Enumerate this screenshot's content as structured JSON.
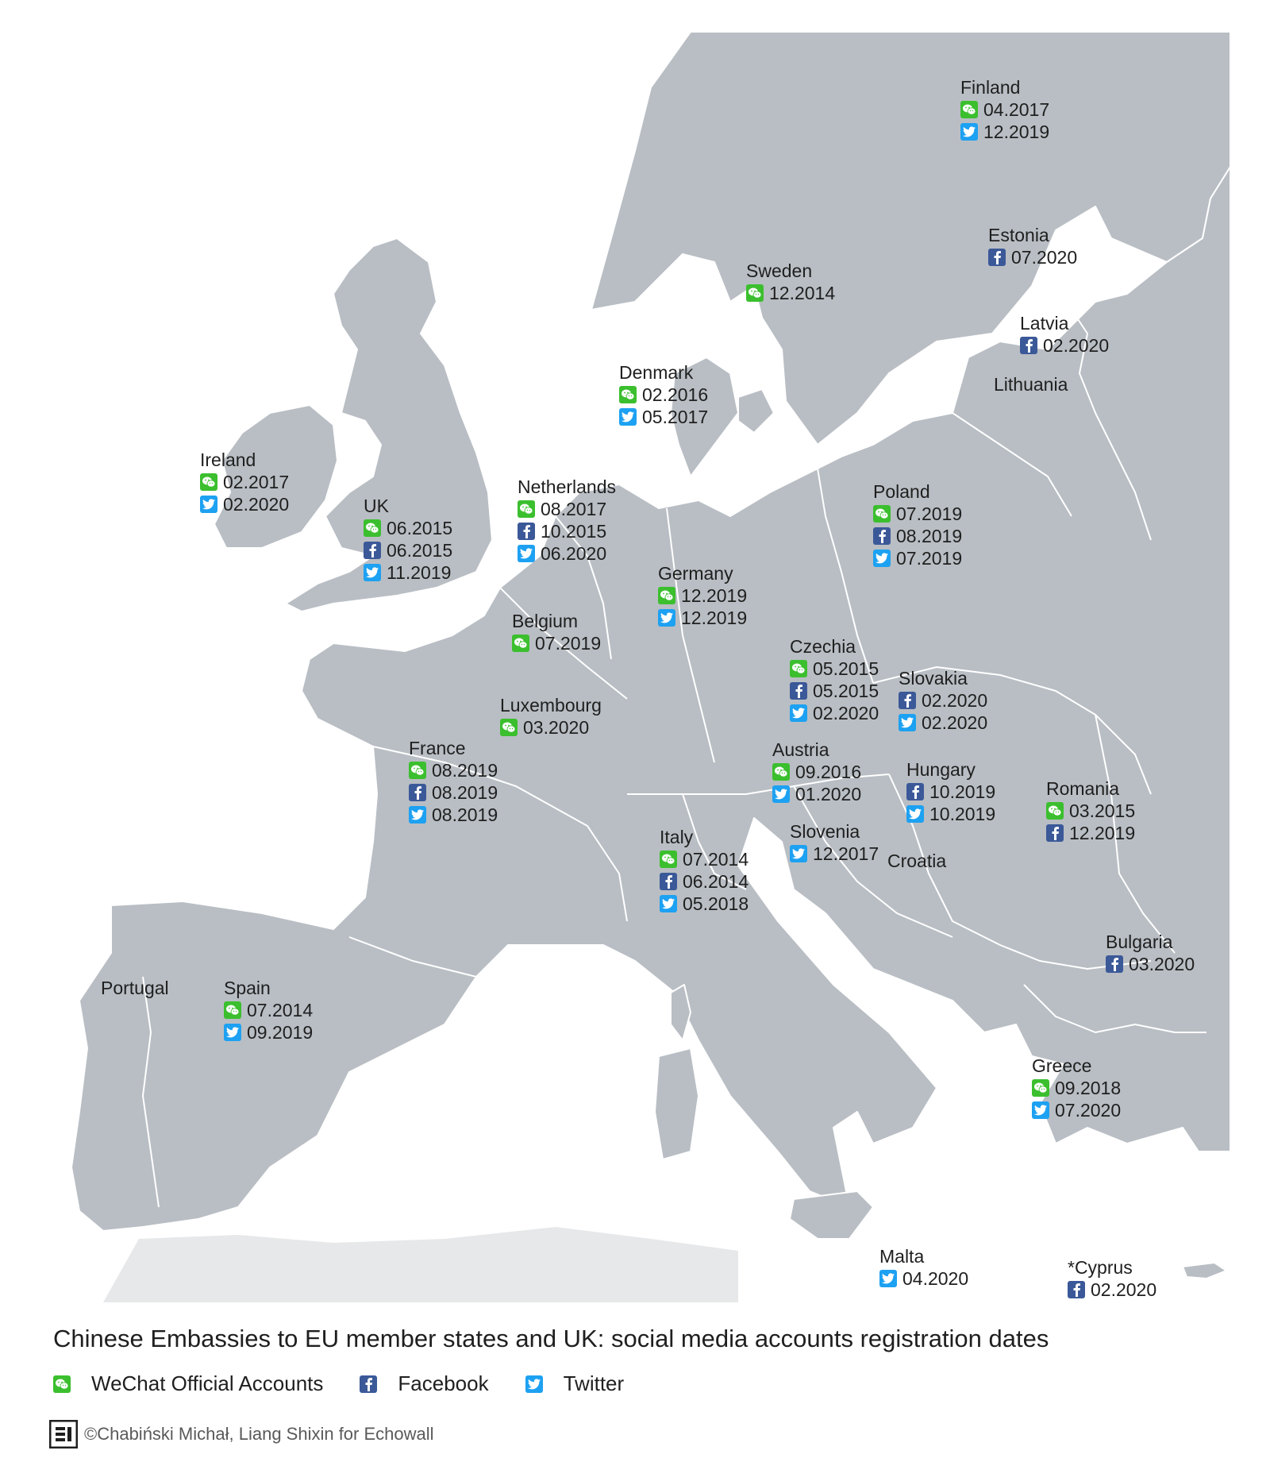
{
  "colors": {
    "wechat": "#3bbf2e",
    "facebook": "#3b5998",
    "twitter": "#1da1f2",
    "land": "#b9bec4"
  },
  "platforms": {
    "wechat": {
      "icon": "wechat-icon"
    },
    "facebook": {
      "icon": "facebook-icon"
    },
    "twitter": {
      "icon": "twitter-icon"
    }
  },
  "countries": [
    {
      "name": "Finland",
      "entries": [
        {
          "platform": "wechat",
          "date": "04.2017"
        },
        {
          "platform": "twitter",
          "date": "12.2019"
        }
      ]
    },
    {
      "name": "Estonia",
      "entries": [
        {
          "platform": "facebook",
          "date": "07.2020"
        }
      ]
    },
    {
      "name": "Sweden",
      "entries": [
        {
          "platform": "wechat",
          "date": "12.2014"
        }
      ]
    },
    {
      "name": "Latvia",
      "entries": [
        {
          "platform": "facebook",
          "date": "02.2020"
        }
      ]
    },
    {
      "name": "Lithuania",
      "entries": []
    },
    {
      "name": "Denmark",
      "entries": [
        {
          "platform": "wechat",
          "date": "02.2016"
        },
        {
          "platform": "twitter",
          "date": "05.2017"
        }
      ]
    },
    {
      "name": "Ireland",
      "entries": [
        {
          "platform": "wechat",
          "date": "02.2017"
        },
        {
          "platform": "twitter",
          "date": "02.2020"
        }
      ]
    },
    {
      "name": "UK",
      "entries": [
        {
          "platform": "wechat",
          "date": "06.2015"
        },
        {
          "platform": "facebook",
          "date": "06.2015"
        },
        {
          "platform": "twitter",
          "date": "11.2019"
        }
      ]
    },
    {
      "name": "Netherlands",
      "entries": [
        {
          "platform": "wechat",
          "date": "08.2017"
        },
        {
          "platform": "facebook",
          "date": "10.2015"
        },
        {
          "platform": "twitter",
          "date": "06.2020"
        }
      ]
    },
    {
      "name": "Poland",
      "entries": [
        {
          "platform": "wechat",
          "date": "07.2019"
        },
        {
          "platform": "facebook",
          "date": "08.2019"
        },
        {
          "platform": "twitter",
          "date": "07.2019"
        }
      ]
    },
    {
      "name": "Germany",
      "entries": [
        {
          "platform": "wechat",
          "date": "12.2019"
        },
        {
          "platform": "twitter",
          "date": "12.2019"
        }
      ]
    },
    {
      "name": "Belgium",
      "entries": [
        {
          "platform": "wechat",
          "date": "07.2019"
        }
      ]
    },
    {
      "name": "Czechia",
      "entries": [
        {
          "platform": "wechat",
          "date": "05.2015"
        },
        {
          "platform": "facebook",
          "date": "05.2015"
        },
        {
          "platform": "twitter",
          "date": "02.2020"
        }
      ]
    },
    {
      "name": "Slovakia",
      "entries": [
        {
          "platform": "facebook",
          "date": "02.2020"
        },
        {
          "platform": "twitter",
          "date": "02.2020"
        }
      ]
    },
    {
      "name": "Luxembourg",
      "entries": [
        {
          "platform": "wechat",
          "date": "03.2020"
        }
      ]
    },
    {
      "name": "France",
      "entries": [
        {
          "platform": "wechat",
          "date": "08.2019"
        },
        {
          "platform": "facebook",
          "date": "08.2019"
        },
        {
          "platform": "twitter",
          "date": "08.2019"
        }
      ]
    },
    {
      "name": "Austria",
      "entries": [
        {
          "platform": "wechat",
          "date": "09.2016"
        },
        {
          "platform": "twitter",
          "date": "01.2020"
        }
      ]
    },
    {
      "name": "Hungary",
      "entries": [
        {
          "platform": "facebook",
          "date": "10.2019"
        },
        {
          "platform": "twitter",
          "date": "10.2019"
        }
      ]
    },
    {
      "name": "Romania",
      "entries": [
        {
          "platform": "wechat",
          "date": "03.2015"
        },
        {
          "platform": "facebook",
          "date": "12.2019"
        }
      ]
    },
    {
      "name": "Italy",
      "entries": [
        {
          "platform": "wechat",
          "date": "07.2014"
        },
        {
          "platform": "facebook",
          "date": "06.2014"
        },
        {
          "platform": "twitter",
          "date": "05.2018"
        }
      ]
    },
    {
      "name": "Slovenia",
      "entries": [
        {
          "platform": "twitter",
          "date": "12.2017"
        }
      ]
    },
    {
      "name": "Croatia",
      "entries": []
    },
    {
      "name": "Bulgaria",
      "entries": [
        {
          "platform": "facebook",
          "date": "03.2020"
        }
      ]
    },
    {
      "name": "Portugal",
      "entries": []
    },
    {
      "name": "Spain",
      "entries": [
        {
          "platform": "wechat",
          "date": "07.2014"
        },
        {
          "platform": "twitter",
          "date": "09.2019"
        }
      ]
    },
    {
      "name": "Greece",
      "entries": [
        {
          "platform": "wechat",
          "date": "09.2018"
        },
        {
          "platform": "twitter",
          "date": "07.2020"
        }
      ]
    },
    {
      "name": "Malta",
      "entries": [
        {
          "platform": "twitter",
          "date": "04.2020"
        }
      ]
    },
    {
      "name": "*Cyprus",
      "entries": [
        {
          "platform": "facebook",
          "date": "02.2020"
        }
      ]
    }
  ],
  "legend": {
    "title": "Chinese Embassies to EU member states and UK: social media accounts registration dates",
    "items": [
      {
        "platform": "wechat",
        "label": "WeChat Official Accounts"
      },
      {
        "platform": "facebook",
        "label": "Facebook"
      },
      {
        "platform": "twitter",
        "label": "Twitter"
      }
    ]
  },
  "credit": "©Chabiński Michał, Liang Shixin for Echowall"
}
